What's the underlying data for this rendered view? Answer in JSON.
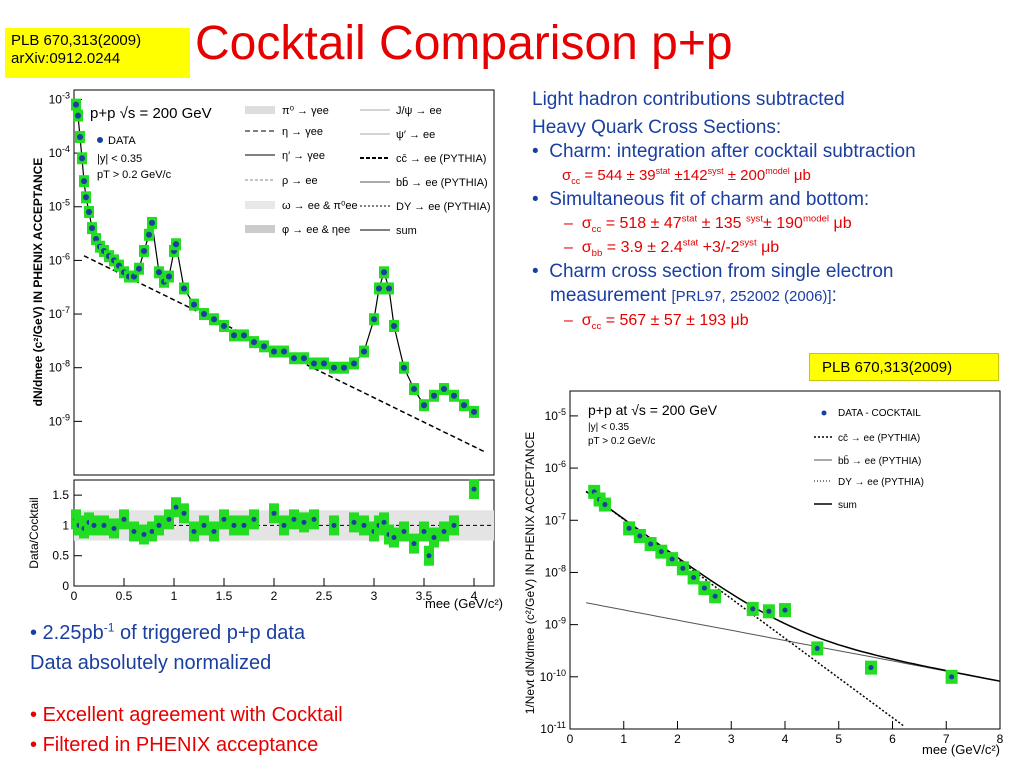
{
  "ref_top": {
    "line1": "PLB 670,313(2009)",
    "line2": "arXiv:0912.0244"
  },
  "title": "Cocktail Comparison p+p",
  "right": {
    "line1": "Light hadron contributions subtracted",
    "line2": "Heavy Quark Cross Sections:",
    "b1": "Charm: integration after cocktail subtraction",
    "b1_val": "σcc = 544 ± 39stat ±142syst ± 200model μb",
    "b2": "Simultaneous fit of charm and bottom:",
    "b2_v1": "σcc = 518 ± 47stat ± 135 syst± 190model μb",
    "b2_v2": "σbb = 3.9 ± 2.4stat +3/-2syst μb",
    "b3a": "Charm cross section from single electron",
    "b3b": "measurement",
    "b3_ref": "[PRL97, 252002 (2006)]",
    "b3_colon": ":",
    "b3_val": "σcc = 567 ± 57 ± 193 μb"
  },
  "ref_box2": "PLB 670,313(2009)",
  "bottom_left": {
    "i1": "2.25pb-1 of triggered p+p data",
    "i2": "Data absolutely normalized",
    "i3": "Excellent agreement with Cocktail",
    "i4": "Filtered in PHENIX acceptance"
  },
  "chart_data": [
    {
      "type": "scatter",
      "title": "",
      "xlabel": "mee (GeV/c2)",
      "ylabel": "dN/dmee (c2/GeV) IN PHENIX ACCEPTANCE",
      "y_scale": "log",
      "xlim": [
        0,
        4.2
      ],
      "ylim": [
        1e-10,
        0.0015
      ],
      "x_ticks": [
        "0",
        "0.5",
        "1",
        "1.5",
        "2",
        "2.5",
        "3",
        "3.5",
        "4"
      ],
      "y_ticks": [
        "10-3",
        "10-4",
        "10-5",
        "10-6",
        "10-7",
        "10-8",
        "10-9"
      ],
      "legend_title": "p+p √s = 200 GeV",
      "legend": [
        "π0 → γee",
        "η → γee",
        "η′ → γee",
        "ρ → ee",
        "ω → ee & π0ee",
        "φ → ee & ηee",
        "J/ψ → ee",
        "ψ′ → ee",
        "cc̄ → ee (PYTHIA)",
        "bb̄ → ee (PYTHIA)",
        "DY → ee (PYTHIA)",
        "sum",
        "DATA"
      ],
      "cuts": [
        "|y| < 0.35",
        "pT > 0.2 GeV/c"
      ],
      "series": [
        {
          "name": "DATA",
          "x": [
            0.02,
            0.04,
            0.06,
            0.08,
            0.1,
            0.12,
            0.15,
            0.18,
            0.22,
            0.26,
            0.3,
            0.35,
            0.4,
            0.45,
            0.5,
            0.55,
            0.6,
            0.65,
            0.7,
            0.75,
            0.78,
            0.85,
            0.9,
            0.95,
            1.0,
            1.02,
            1.1,
            1.2,
            1.3,
            1.4,
            1.5,
            1.6,
            1.7,
            1.8,
            1.9,
            2.0,
            2.1,
            2.2,
            2.3,
            2.4,
            2.5,
            2.6,
            2.7,
            2.8,
            2.9,
            3.0,
            3.05,
            3.1,
            3.15,
            3.2,
            3.3,
            3.4,
            3.5,
            3.6,
            3.7,
            3.8,
            3.9,
            4.0
          ],
          "values": [
            0.0008,
            0.0005,
            0.0002,
            8e-05,
            3e-05,
            1.5e-05,
            8e-06,
            4e-06,
            2.5e-06,
            1.8e-06,
            1.5e-06,
            1.2e-06,
            1e-06,
            8e-07,
            6e-07,
            5e-07,
            5e-07,
            7e-07,
            1.5e-06,
            3e-06,
            5e-06,
            6e-07,
            4e-07,
            5e-07,
            1.5e-06,
            2e-06,
            3e-07,
            1.5e-07,
            1e-07,
            8e-08,
            6e-08,
            4e-08,
            4e-08,
            3e-08,
            2.5e-08,
            2e-08,
            2e-08,
            1.5e-08,
            1.5e-08,
            1.2e-08,
            1.2e-08,
            1e-08,
            1e-08,
            1.2e-08,
            2e-08,
            8e-08,
            3e-07,
            6e-07,
            3e-07,
            6e-08,
            1e-08,
            4e-09,
            2e-09,
            3e-09,
            4e-09,
            3e-09,
            2e-09,
            1.5e-09
          ]
        }
      ]
    },
    {
      "type": "scatter",
      "title": "",
      "xlabel": "mee (GeV/c2)",
      "ylabel": "Data/Cocktail",
      "xlim": [
        0,
        4.2
      ],
      "ylim": [
        0,
        1.75
      ],
      "x_ticks": [
        "0",
        "0.5",
        "1",
        "1.5",
        "2",
        "2.5",
        "3",
        "3.5",
        "4"
      ],
      "y_ticks": [
        "0",
        "0.5",
        "1",
        "1.5"
      ],
      "series": [
        {
          "name": "",
          "x": [
            0.02,
            0.05,
            0.1,
            0.15,
            0.2,
            0.3,
            0.4,
            0.5,
            0.6,
            0.7,
            0.78,
            0.85,
            0.95,
            1.02,
            1.1,
            1.2,
            1.3,
            1.4,
            1.5,
            1.6,
            1.7,
            1.8,
            2.0,
            2.1,
            2.2,
            2.3,
            2.4,
            2.6,
            2.8,
            2.9,
            3.0,
            3.05,
            3.1,
            3.15,
            3.2,
            3.3,
            3.4,
            3.5,
            3.55,
            3.6,
            3.7,
            3.8,
            4.0
          ],
          "values": [
            1.1,
            1.0,
            0.95,
            1.05,
            1.0,
            1.0,
            0.95,
            1.1,
            0.9,
            0.85,
            0.9,
            1.0,
            1.1,
            1.3,
            1.2,
            0.9,
            1.0,
            0.9,
            1.1,
            1.0,
            1.0,
            1.1,
            1.2,
            1.0,
            1.1,
            1.05,
            1.1,
            1.0,
            1.05,
            1.0,
            0.9,
            1.0,
            1.05,
            0.85,
            0.8,
            0.9,
            0.7,
            0.9,
            0.5,
            0.8,
            0.9,
            1.0,
            1.6
          ]
        }
      ]
    },
    {
      "type": "scatter",
      "title": "",
      "xlabel": "mee (GeV/c2)",
      "ylabel": "1/Nevt dN/dmee (c2/GeV) IN PHENIX ACCEPTANCE",
      "y_scale": "log",
      "xlim": [
        0,
        8
      ],
      "ylim": [
        1e-11,
        3e-05
      ],
      "x_ticks": [
        "0",
        "1",
        "2",
        "3",
        "4",
        "5",
        "6",
        "7",
        "8"
      ],
      "y_ticks": [
        "10-5",
        "10-6",
        "10-7",
        "10-8",
        "10-9",
        "10-10",
        "10-11"
      ],
      "legend_title": "p+p at √s = 200 GeV",
      "cuts": [
        "|y| < 0.35",
        "pT > 0.2 GeV/c"
      ],
      "legend": [
        "DATA - COCKTAIL",
        "cc̄ → ee (PYTHIA)",
        "bb̄ → ee (PYTHIA)",
        "DY → ee (PYTHIA)",
        "sum"
      ],
      "series": [
        {
          "name": "DATA - COCKTAIL",
          "x": [
            0.45,
            0.55,
            0.65,
            1.1,
            1.3,
            1.5,
            1.7,
            1.9,
            2.1,
            2.3,
            2.5,
            2.7,
            3.4,
            3.7,
            4.0,
            4.6,
            5.6,
            7.1
          ],
          "values": [
            3.5e-07,
            2.5e-07,
            2e-07,
            7e-08,
            5e-08,
            3.5e-08,
            2.5e-08,
            1.8e-08,
            1.2e-08,
            8e-09,
            5e-09,
            3.5e-09,
            2e-09,
            1.8e-09,
            1.9e-09,
            3.5e-10,
            1.5e-10,
            1e-10
          ]
        }
      ]
    }
  ]
}
